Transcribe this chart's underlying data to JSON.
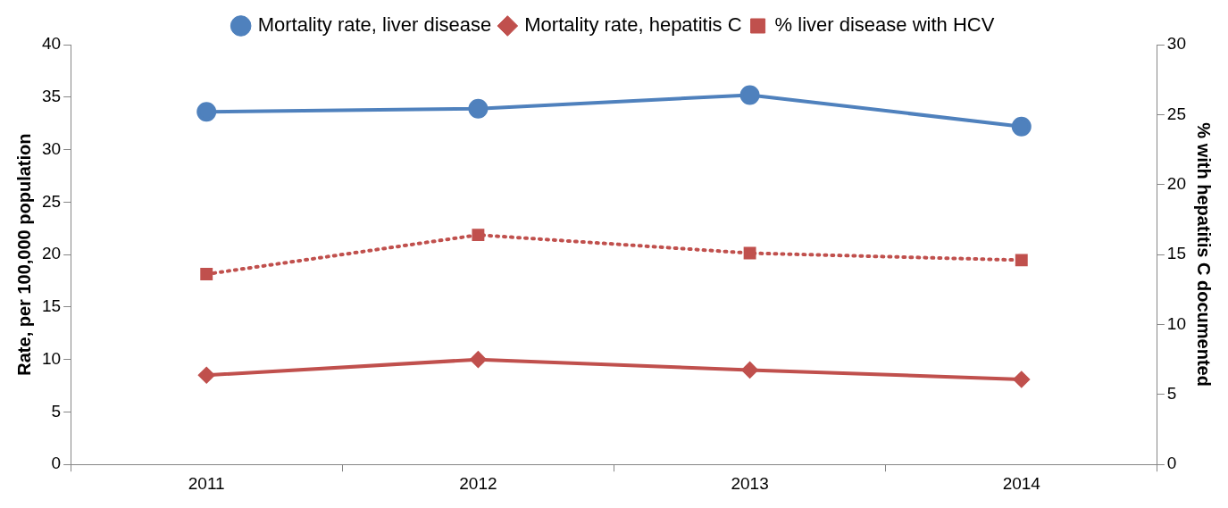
{
  "chart_data": {
    "type": "line",
    "categories": [
      "2011",
      "2012",
      "2013",
      "2014"
    ],
    "ylabel": "Rate, per 100,000 population",
    "y2label": "% with hepatitis C documented",
    "ylim": [
      0,
      40
    ],
    "yticks": [
      0,
      5,
      10,
      15,
      20,
      25,
      30,
      35,
      40
    ],
    "y2lim": [
      0,
      30
    ],
    "y2ticks": [
      0,
      5,
      10,
      15,
      20,
      25,
      30
    ],
    "grid": false,
    "legend": "top",
    "series": [
      {
        "name": "Mortality rate, liver disease",
        "color": "#4f81bd",
        "values": [
          33.6,
          33.9,
          35.2,
          32.2
        ],
        "marker": "circle",
        "line_style": "solid"
      },
      {
        "name": "Mortality rate, hepatitis C",
        "color": "#c0504d",
        "values": [
          8.5,
          10.0,
          9.0,
          8.1
        ],
        "marker": "diamond",
        "line_style": "solid"
      },
      {
        "name": "% liver disease with HCV",
        "color": "#c0504d",
        "values": [
          13.6,
          16.4,
          15.1,
          14.6
        ],
        "axis": "y2",
        "marker": "square",
        "line_style": "dotted"
      }
    ]
  }
}
